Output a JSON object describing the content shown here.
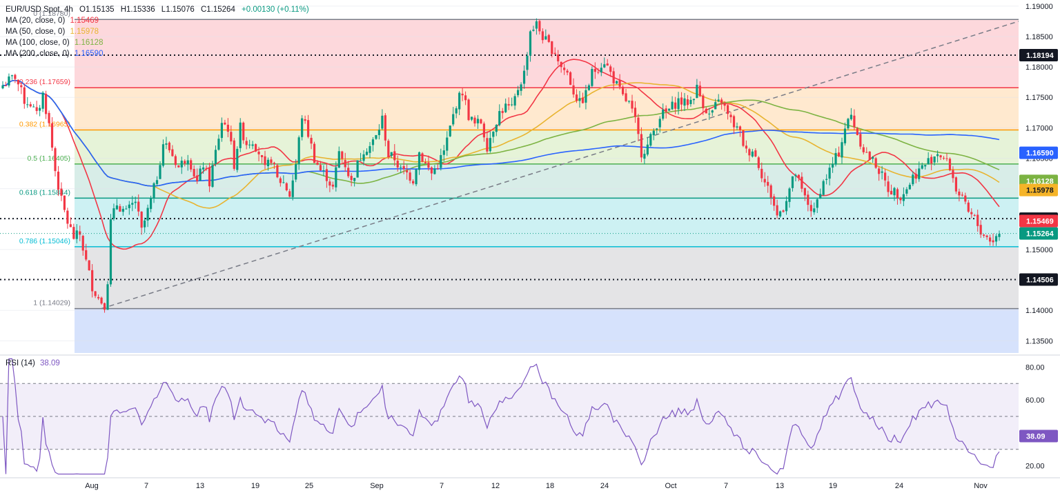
{
  "colors": {
    "up": "#089981",
    "down": "#f23645",
    "ma20": "#f23645",
    "ma50": "#e8b430",
    "ma100": "#7cb342",
    "ma200": "#2962ff",
    "rsi": "#7e57c2",
    "trend": "#787b86",
    "grid": "#f0f3fa",
    "text": "#131722"
  },
  "legend": {
    "symbol": "EUR/USD Spot, 4h",
    "o": "O1.15135",
    "h": "H1.15336",
    "l": "L1.15076",
    "c": "C1.15264",
    "change": "+0.00130 (+0.11%)",
    "ma": [
      {
        "label": "MA (20, close, 0)",
        "value": "1.15469",
        "color": "#f23645"
      },
      {
        "label": "MA (50, close, 0)",
        "value": "1.15978",
        "color": "#e8b430"
      },
      {
        "label": "MA (100, close, 0)",
        "value": "1.16128",
        "color": "#7cb342"
      },
      {
        "label": "MA (200, close, 0)",
        "value": "1.16590",
        "color": "#2962ff"
      }
    ]
  },
  "rsi_legend": {
    "label": "RSI (14)",
    "value": "38.09"
  },
  "chart_data": {
    "type": "candlestick",
    "symbol": "EUR/USD",
    "timeframe": "4h",
    "ylim": [
      1.133,
      1.191
    ],
    "y_ticks": [
      "1.19000",
      "1.18500",
      "1.18000",
      "1.17500",
      "1.17000",
      "1.16500",
      "1.16000",
      "1.15500",
      "1.15000",
      "1.14500",
      "1.14000",
      "1.13500"
    ],
    "x_ticks": [
      "Aug",
      "7",
      "13",
      "19",
      "25",
      "Sep",
      "7",
      "12",
      "18",
      "24",
      "Oct",
      "7",
      "13",
      "19",
      "24",
      "Nov"
    ],
    "fib_levels": [
      {
        "ratio": "0",
        "label": "0 (1.18780)",
        "price": 1.1878,
        "line": "#787b86",
        "fill": "#fdd8dc"
      },
      {
        "ratio": "0.236",
        "label": "0.236 (1.17659)",
        "price": 1.17659,
        "line": "#f23645",
        "fill": "#ffe9cf"
      },
      {
        "ratio": "0.382",
        "label": "0.382 (1.16965)",
        "price": 1.16965,
        "line": "#ff9800",
        "fill": "#e6f3d8"
      },
      {
        "ratio": "0.5",
        "label": "0.5 (1.16405)",
        "price": 1.16405,
        "line": "#4caf50",
        "fill": "#d8ede8"
      },
      {
        "ratio": "0.618",
        "label": "0.618 (1.15844)",
        "price": 1.15844,
        "line": "#089981",
        "fill": "#cdf1f3"
      },
      {
        "ratio": "0.786",
        "label": "0.786 (1.15046)",
        "price": 1.15046,
        "line": "#00bcd4",
        "fill": "#e4e4e6"
      },
      {
        "ratio": "1",
        "label": "1 (1.14029)",
        "price": 1.14029,
        "line": "#787b86",
        "fill": "#d6e2fc"
      }
    ],
    "horizontal_levels": [
      1.18194,
      1.15507,
      1.14506
    ],
    "trendline": {
      "start": [
        1.14029,
        "Aug"
      ],
      "end": [
        1.1875,
        "Nov"
      ]
    },
    "price_labels": [
      {
        "text": "1.18194",
        "bg": "#131722",
        "fg": "#ffffff",
        "price": 1.18194
      },
      {
        "text": "1.16590",
        "bg": "#2962ff",
        "fg": "#ffffff",
        "price": 1.1659
      },
      {
        "text": "1.16128",
        "bg": "#7cb342",
        "fg": "#ffffff",
        "price": 1.16128
      },
      {
        "text": "1.15978",
        "bg": "#f5b428",
        "fg": "#131722",
        "price": 1.15978
      },
      {
        "text": "1.15507",
        "bg": "#131722",
        "fg": "#ffffff",
        "price": 1.15507
      },
      {
        "text": "1.15469",
        "bg": "#f23645",
        "fg": "#ffffff",
        "price": 1.15469
      },
      {
        "text": "1.15264",
        "bg": "#089981",
        "fg": "#ffffff",
        "price": 1.15264
      },
      {
        "text": "1.14506",
        "bg": "#131722",
        "fg": "#ffffff",
        "price": 1.14506
      }
    ],
    "close_path": [
      [
        0,
        1.177
      ],
      [
        4,
        1.1785
      ],
      [
        7,
        1.1745
      ],
      [
        9,
        1.174
      ],
      [
        11,
        1.172
      ],
      [
        13,
        1.1755
      ],
      [
        15,
        1.1705
      ],
      [
        17,
        1.163
      ],
      [
        19,
        1.158
      ],
      [
        21,
        1.1545
      ],
      [
        23,
        1.152
      ],
      [
        25,
        1.1525
      ],
      [
        27,
        1.148
      ],
      [
        29,
        1.144
      ],
      [
        31,
        1.142
      ],
      [
        33,
        1.141
      ],
      [
        34,
        1.145
      ],
      [
        35,
        1.1545
      ],
      [
        37,
        1.1575
      ],
      [
        40,
        1.156
      ],
      [
        43,
        1.158
      ],
      [
        45,
        1.153
      ],
      [
        48,
        1.158
      ],
      [
        50,
        1.162
      ],
      [
        52,
        1.1675
      ],
      [
        54,
        1.1665
      ],
      [
        57,
        1.1635
      ],
      [
        60,
        1.1655
      ],
      [
        63,
        1.161
      ],
      [
        65,
        1.164
      ],
      [
        67,
        1.161
      ],
      [
        69,
        1.166
      ],
      [
        71,
        1.171
      ],
      [
        73,
        1.17
      ],
      [
        75,
        1.164
      ],
      [
        77,
        1.17
      ],
      [
        79,
        1.1675
      ],
      [
        81,
        1.168
      ],
      [
        83,
        1.166
      ],
      [
        85,
        1.163
      ],
      [
        87,
        1.165
      ],
      [
        89,
        1.1615
      ],
      [
        91,
        1.161
      ],
      [
        93,
        1.159
      ],
      [
        95,
        1.164
      ],
      [
        97,
        1.172
      ],
      [
        99,
        1.169
      ],
      [
        101,
        1.165
      ],
      [
        103,
        1.163
      ],
      [
        105,
        1.162
      ],
      [
        107,
        1.16
      ],
      [
        109,
        1.166
      ],
      [
        111,
        1.164
      ],
      [
        113,
        1.161
      ],
      [
        115,
        1.164
      ],
      [
        117,
        1.1665
      ],
      [
        119,
        1.167
      ],
      [
        121,
        1.1685
      ],
      [
        123,
        1.1715
      ],
      [
        125,
        1.1655
      ],
      [
        127,
        1.165
      ],
      [
        129,
        1.163
      ],
      [
        131,
        1.1625
      ],
      [
        133,
        1.1615
      ],
      [
        135,
        1.166
      ],
      [
        137,
        1.164
      ],
      [
        139,
        1.1625
      ],
      [
        141,
        1.164
      ],
      [
        143,
        1.166
      ],
      [
        145,
        1.17
      ],
      [
        147,
        1.174
      ],
      [
        149,
        1.176
      ],
      [
        151,
        1.172
      ],
      [
        153,
        1.1705
      ],
      [
        155,
        1.171
      ],
      [
        157,
        1.167
      ],
      [
        159,
        1.17
      ],
      [
        161,
        1.1725
      ],
      [
        163,
        1.1735
      ],
      [
        165,
        1.173
      ],
      [
        167,
        1.1765
      ],
      [
        169,
        1.179
      ],
      [
        171,
        1.186
      ],
      [
        173,
        1.187
      ],
      [
        175,
        1.185
      ],
      [
        177,
        1.1835
      ],
      [
        179,
        1.1825
      ],
      [
        181,
        1.18
      ],
      [
        183,
        1.179
      ],
      [
        185,
        1.176
      ],
      [
        187,
        1.174
      ],
      [
        189,
        1.1755
      ],
      [
        191,
        1.179
      ],
      [
        193,
        1.18
      ],
      [
        195,
        1.181
      ],
      [
        197,
        1.179
      ],
      [
        199,
        1.177
      ],
      [
        201,
        1.175
      ],
      [
        203,
        1.174
      ],
      [
        205,
        1.171
      ],
      [
        207,
        1.166
      ],
      [
        209,
        1.167
      ],
      [
        211,
        1.1695
      ],
      [
        213,
        1.172
      ],
      [
        215,
        1.1725
      ],
      [
        217,
        1.1735
      ],
      [
        219,
        1.1745
      ],
      [
        221,
        1.174
      ],
      [
        223,
        1.1745
      ],
      [
        225,
        1.1765
      ],
      [
        227,
        1.174
      ],
      [
        229,
        1.172
      ],
      [
        231,
        1.1735
      ],
      [
        233,
        1.1745
      ],
      [
        235,
        1.172
      ],
      [
        237,
        1.1705
      ],
      [
        239,
        1.169
      ],
      [
        241,
        1.166
      ],
      [
        243,
        1.1665
      ],
      [
        245,
        1.164
      ],
      [
        247,
        1.161
      ],
      [
        249,
        1.159
      ],
      [
        251,
        1.1555
      ],
      [
        253,
        1.157
      ],
      [
        255,
        1.16
      ],
      [
        257,
        1.1625
      ],
      [
        259,
        1.1595
      ],
      [
        261,
        1.1575
      ],
      [
        263,
        1.156
      ],
      [
        265,
        1.16
      ],
      [
        267,
        1.162
      ],
      [
        269,
        1.164
      ],
      [
        271,
        1.166
      ],
      [
        273,
        1.17
      ],
      [
        275,
        1.172
      ],
      [
        277,
        1.169
      ],
      [
        279,
        1.1665
      ],
      [
        281,
        1.165
      ],
      [
        283,
        1.164
      ],
      [
        285,
        1.162
      ],
      [
        287,
        1.16
      ],
      [
        289,
        1.1595
      ],
      [
        291,
        1.159
      ],
      [
        293,
        1.16
      ],
      [
        295,
        1.162
      ],
      [
        297,
        1.163
      ],
      [
        299,
        1.164
      ],
      [
        301,
        1.165
      ],
      [
        303,
        1.166
      ],
      [
        305,
        1.165
      ],
      [
        307,
        1.1635
      ],
      [
        309,
        1.16
      ],
      [
        311,
        1.158
      ],
      [
        313,
        1.156
      ],
      [
        315,
        1.155
      ],
      [
        317,
        1.153
      ],
      [
        319,
        1.152
      ],
      [
        321,
        1.1515
      ],
      [
        323,
        1.1526
      ]
    ]
  }
}
